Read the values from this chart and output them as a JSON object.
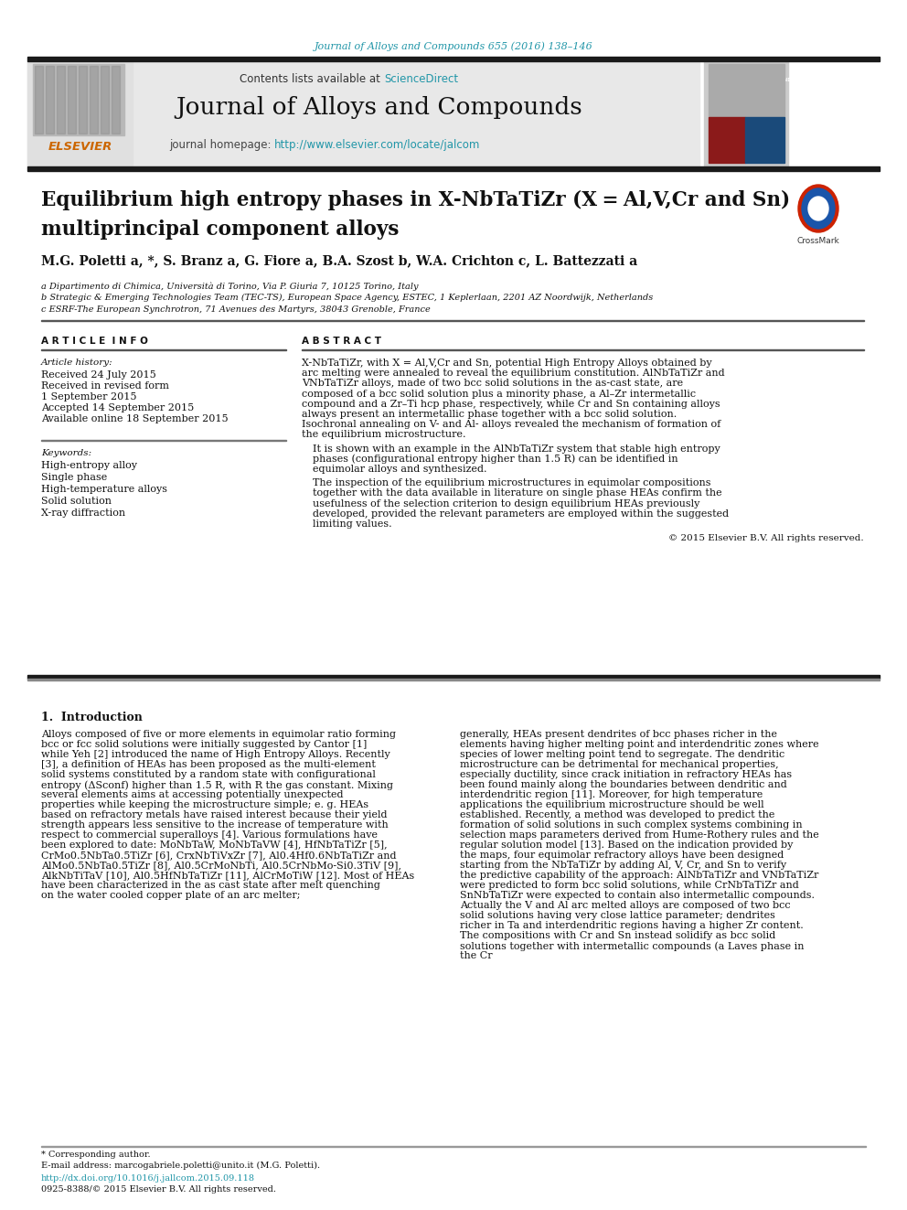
{
  "journal_ref": "Journal of Alloys and Compounds 655 (2016) 138–146",
  "journal_ref_color": "#2196a8",
  "journal_name": "Journal of Alloys and Compounds",
  "journal_homepage_link": "http://www.elsevier.com/locate/jalcom",
  "sciencedirect_color": "#2196a8",
  "title_line1": "Equilibrium high entropy phases in X-NbTaTiZr (X = Al,V,Cr and Sn)",
  "title_line2": "multiprincipal component alloys",
  "authors": "M.G. Poletti a, *, S. Branz a, G. Fiore a, B.A. Szost b, W.A. Crichton c, L. Battezzati a",
  "affil_a": "a Dipartimento di Chimica, Università di Torino, Via P. Giuria 7, 10125 Torino, Italy",
  "affil_b": "b Strategic & Emerging Technologies Team (TEC-TS), European Space Agency, ESTEC, 1 Keplerlaan, 2201 AZ Noordwijk, Netherlands",
  "affil_c": "c ESRF-The European Synchrotron, 71 Avenues des Martyrs, 38043 Grenoble, France",
  "article_info_header": "A R T I C L E  I N F O",
  "abstract_header": "A B S T R A C T",
  "article_history_label": "Article history:",
  "received": "Received 24 July 2015",
  "received_revised": "Received in revised form",
  "revised_date": "1 September 2015",
  "accepted": "Accepted 14 September 2015",
  "available": "Available online 18 September 2015",
  "keywords_label": "Keywords:",
  "keywords": [
    "High-entropy alloy",
    "Single phase",
    "High-temperature alloys",
    "Solid solution",
    "X-ray diffraction"
  ],
  "abstract_text": "X-NbTaTiZr, with X = Al,V,Cr and Sn, potential High Entropy Alloys obtained by arc melting were annealed to reveal the equilibrium constitution. AlNbTaTiZr and VNbTaTiZr alloys, made of two bcc solid solutions in the as-cast state, are composed of a bcc solid solution plus a minority phase, a Al–Zr intermetallic compound and a Zr–Ti hcp phase, respectively, while Cr and Sn containing alloys always present an intermetallic phase together with a bcc solid solution. Isochronal annealing on V- and Al- alloys revealed the mechanism of formation of the equilibrium microstructure.",
  "abstract_text2": "It is shown with an example in the AlNbTaTiZr system that stable high entropy phases (configurational entropy higher than 1.5 R) can be identified in equimolar alloys and synthesized.",
  "abstract_text3": "The inspection of the equilibrium microstructures in equimolar compositions together with the data available in literature on single phase HEAs confirm the usefulness of the selection criterion to design equilibrium HEAs previously developed, provided the relevant parameters are employed within the suggested limiting values.",
  "copyright": "© 2015 Elsevier B.V. All rights reserved.",
  "intro_header": "1.  Introduction",
  "intro_col1": "Alloys composed of five or more elements in equimolar ratio forming bcc or fcc solid solutions were initially suggested by Cantor [1] while Yeh [2] introduced the name of High Entropy Alloys. Recently [3], a definition of HEAs has been proposed as the multi-element solid systems constituted by a random state with configurational entropy (ΔSconf) higher than 1.5 R, with R the gas constant. Mixing several elements aims at accessing potentially unexpected properties while keeping the microstructure simple; e. g. HEAs based on refractory metals have raised interest because their yield strength appears less sensitive to the increase of temperature with respect to commercial superalloys [4]. Various formulations have been explored to date: MoNbTaW, MoNbTaVW [4], HfNbTaTiZr [5], CrMo0.5NbTa0.5TiZr [6], CrxNbTiVxZr [7], Al0.4Hf0.6NbTaTiZr and AlMo0.5NbTa0.5TiZr [8], Al0.5CrMoNbTi, Al0.5CrNbMo-Si0.3TiV [9], AlkNbTiTaV [10], Al0.5HfNbTaTiZr [11], AlCrMoTiW [12]. Most of HEAs have been characterized in the as cast state after melt quenching on the water cooled copper plate of an arc melter;",
  "intro_col2": "generally, HEAs present dendrites of bcc phases richer in the elements having higher melting point and interdendritic zones where species of lower melting point tend to segregate. The dendritic microstructure can be detrimental for mechanical properties, especially ductility, since crack initiation in refractory HEAs has been found mainly along the boundaries between dendritic and interdendritic region [11]. Moreover, for high temperature applications the equilibrium microstructure should be well established. Recently, a method was developed to predict the formation of solid solutions in such complex systems combining in selection maps parameters derived from Hume-Rothery rules and the regular solution model [13]. Based on the indication provided by the maps, four equimolar refractory alloys have been designed starting from the NbTaTiZr by adding Al, V, Cr, and Sn to verify the predictive capability of the approach: AlNbTaTiZr and VNbTaTiZr were predicted to form bcc solid solutions, while CrNbTaTiZr and SnNbTaTiZr were expected to contain also intermetallic compounds. Actually the V and Al arc melted alloys are composed of two bcc solid solutions having very close lattice parameter; dendrites richer in Ta and interdendritic regions having a higher Zr content. The compositions with Cr and Sn instead solidify as bcc solid solutions together with intermetallic compounds (a Laves phase in the Cr",
  "footer_line1": "* Corresponding author.",
  "footer_line2": "E-mail address: marcogabriele.poletti@unito.it (M.G. Poletti).",
  "footer_line3": "http://dx.doi.org/10.1016/j.jallcom.2015.09.118",
  "footer_line4": "0925-8388/© 2015 Elsevier B.V. All rights reserved.",
  "bg_color": "#ffffff",
  "header_bar_color": "#1a1a1a",
  "link_color": "#2196a8"
}
